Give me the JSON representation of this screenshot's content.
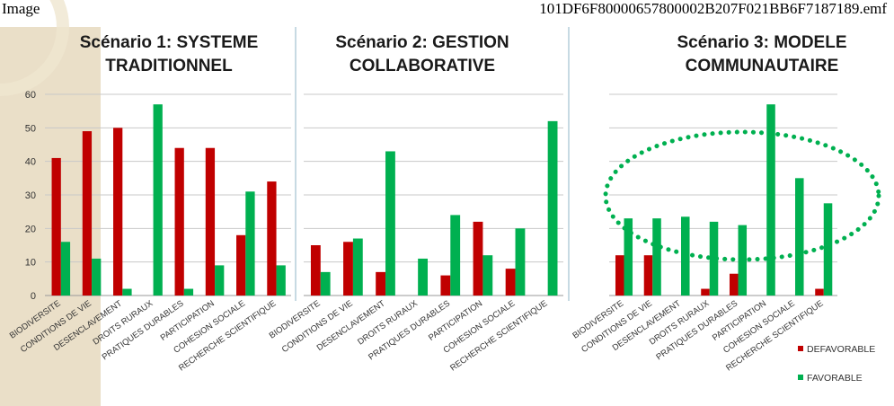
{
  "header": {
    "left": "Image",
    "right": "101DF6F80000657800002B207F021BB6F7187189.emf"
  },
  "colors": {
    "defavorable": "#c00000",
    "favorable": "#00b050",
    "ellipse": "#00b050",
    "highlight": "#d9c49a"
  },
  "chart_data": [
    {
      "type": "bar",
      "title": [
        "Scénario 1: SYSTEME",
        "TRADITIONNEL"
      ],
      "categories": [
        "BIODIVERSITE",
        "CONDITIONS DE VIE",
        "DESENCLAVEMENT",
        "DROITS RURAUX",
        "PRATIQUES DURABLES",
        "PARTICIPATION",
        "COHESION SOCIALE",
        "RECHERCHE SCIENTIFIQUE"
      ],
      "series": [
        {
          "name": "DEFAVORABLE",
          "values": [
            41,
            49,
            50,
            0,
            44,
            44,
            18,
            34
          ]
        },
        {
          "name": "FAVORABLE",
          "values": [
            16,
            11,
            2,
            57,
            2,
            9,
            31,
            9
          ]
        }
      ],
      "ylim": [
        0,
        60
      ],
      "yticks": [
        "0",
        "10",
        "20",
        "30",
        "40",
        "50",
        "60"
      ],
      "grid": true
    },
    {
      "type": "bar",
      "title": [
        "Scénario 2: GESTION",
        "COLLABORATIVE"
      ],
      "categories": [
        "BIODIVERSITE",
        "CONDITIONS DE VIE",
        "DESENCLAVEMENT",
        "DROITS RURAUX",
        "PRATIQUES DURABLES",
        "PARTICIPATION",
        "COHESION SOCIALE",
        "RECHERCHE SCIENTIFIQUE"
      ],
      "series": [
        {
          "name": "DEFAVORABLE",
          "values": [
            15,
            16,
            7,
            0,
            6,
            22,
            8,
            0
          ]
        },
        {
          "name": "FAVORABLE",
          "values": [
            7,
            17,
            43,
            11,
            24,
            12,
            20,
            52
          ]
        }
      ],
      "ylim": [
        0,
        60
      ],
      "grid": true
    },
    {
      "type": "bar",
      "title": [
        "Scénario 3: MODELE",
        "COMMUNAUTAIRE"
      ],
      "categories": [
        "BIODIVERSITE",
        "CONDITIONS DE VIE",
        "DESENCLAVEMENT",
        "DROITS RURAUX",
        "PRATIQUES DURABLES",
        "PARTICIPATION",
        "COHESION SOCIALE",
        "RECHERCHE SCIENTIFIQUE"
      ],
      "series": [
        {
          "name": "DEFAVORABLE",
          "values": [
            12,
            12,
            0,
            2,
            6.5,
            0,
            0,
            2
          ]
        },
        {
          "name": "FAVORABLE",
          "values": [
            23,
            23,
            23.5,
            22,
            21,
            57,
            35,
            27.5
          ]
        }
      ],
      "ylim": [
        0,
        60
      ],
      "grid": true,
      "legend": {
        "position": "bottom-right",
        "entries": [
          "DEFAVORABLE",
          "FAVORABLE"
        ]
      }
    }
  ]
}
